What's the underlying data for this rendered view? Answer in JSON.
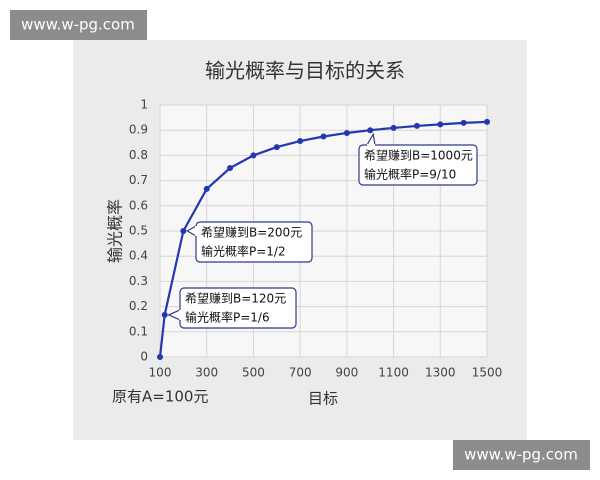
{
  "chart_data": {
    "type": "line",
    "title": "输光概率与目标的关系",
    "x_label": "目标",
    "y_label": "输光概率",
    "x": [
      100,
      120,
      200,
      300,
      400,
      500,
      600,
      700,
      800,
      900,
      1000,
      1100,
      1200,
      1300,
      1400,
      1500
    ],
    "values": [
      0,
      0.167,
      0.5,
      0.667,
      0.75,
      0.8,
      0.833,
      0.857,
      0.875,
      0.889,
      0.9,
      0.909,
      0.917,
      0.923,
      0.929,
      0.933
    ],
    "color": "#2437b0",
    "xlim": [
      100,
      1500
    ],
    "xticks": [
      100,
      300,
      500,
      700,
      900,
      1100,
      1300,
      1500
    ],
    "ylim": [
      0,
      1
    ],
    "yticks": [
      0,
      0.1,
      0.2,
      0.3,
      0.4,
      0.5,
      0.6,
      0.7,
      0.8,
      0.9,
      1
    ],
    "grid": true,
    "annotations": [
      {
        "lines": [
          "希望赚到B=120元",
          "输光概率P=1/6"
        ]
      },
      {
        "lines": [
          "希望赚到B=200元",
          "输光概率P=1/2"
        ]
      },
      {
        "lines": [
          "希望赚到B=1000元",
          "输光概率P=9/10"
        ]
      }
    ],
    "note": "原有A=100元"
  },
  "watermarks": [
    "www.w-pg.com",
    "www.w-pg.com"
  ]
}
